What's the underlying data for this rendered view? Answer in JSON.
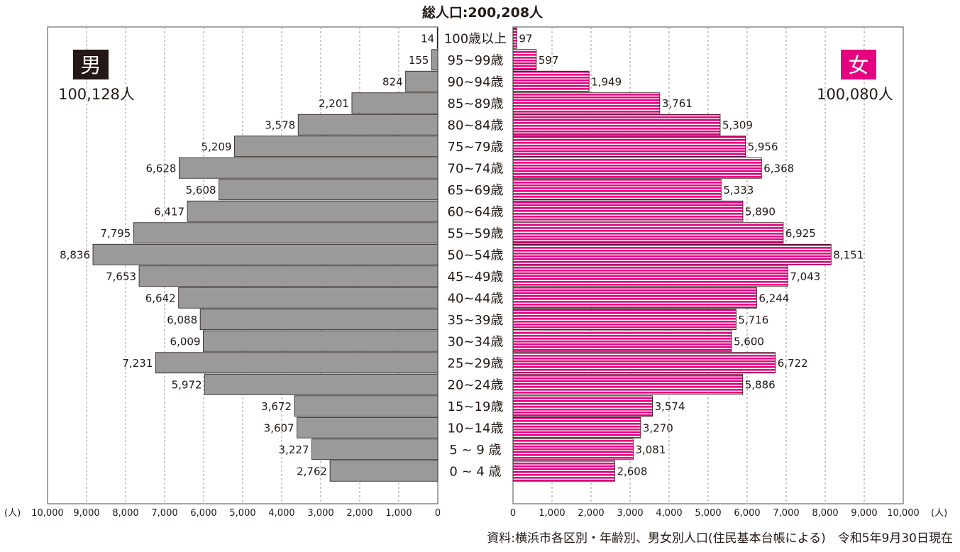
{
  "chart_data": {
    "type": "bar",
    "title": "総人口:200,208人",
    "source": "資料:横浜市各区別・年齢別、男女別人口(住民基本台帳による)　令和5年9月30日現在",
    "unit_left": "(人)",
    "unit_right": "(人)",
    "categories": [
      "100歳以上",
      "95~99歳",
      "90~94歳",
      "85~89歳",
      "80~84歳",
      "75~79歳",
      "70~74歳",
      "65~69歳",
      "60~64歳",
      "55~59歳",
      "50~54歳",
      "45~49歳",
      "40~44歳",
      "35~39歳",
      "30~34歳",
      "25~29歳",
      "20~24歳",
      "15~19歳",
      "10~14歳",
      "5 ~ 9 歳",
      "0 ~ 4 歳"
    ],
    "series": [
      {
        "name": "男",
        "total": "100,128人",
        "color": "#9a9a9a",
        "values": [
          14,
          155,
          824,
          2201,
          3578,
          5209,
          6628,
          5608,
          6417,
          7795,
          8836,
          7653,
          6642,
          6088,
          6009,
          7231,
          5972,
          3672,
          3607,
          3227,
          2762
        ],
        "labels": [
          "14",
          "155",
          "824",
          "2,201",
          "3,578",
          "5,209",
          "6,628",
          "5,608",
          "6,417",
          "7,795",
          "8,836",
          "7,653",
          "6,642",
          "6,088",
          "6,009",
          "7,231",
          "5,972",
          "3,672",
          "3,607",
          "3,227",
          "2,762"
        ]
      },
      {
        "name": "女",
        "total": "100,080人",
        "color": "#e4007f",
        "values": [
          97,
          597,
          1949,
          3761,
          5309,
          5956,
          6368,
          5333,
          5890,
          6925,
          8151,
          7043,
          6244,
          5716,
          5600,
          6722,
          5886,
          3574,
          3270,
          3081,
          2608
        ],
        "labels": [
          "97",
          "597",
          "1,949",
          "3,761",
          "5,309",
          "5,956",
          "6,368",
          "5,333",
          "5,890",
          "6,925",
          "8,151",
          "7,043",
          "6,244",
          "5,716",
          "5,600",
          "6,722",
          "5,886",
          "3,574",
          "3,270",
          "3,081",
          "2,608"
        ]
      }
    ],
    "xlim": [
      0,
      10000
    ],
    "ticks_left": [
      "10,000",
      "9,000",
      "8,000",
      "7,000",
      "6,000",
      "5,000",
      "4,000",
      "3,000",
      "2,000",
      "1,000",
      "0"
    ],
    "ticks_right": [
      "0",
      "1,000",
      "2,000",
      "3,000",
      "4,000",
      "5,000",
      "6,000",
      "7,000",
      "8,000",
      "9,000",
      "10,000"
    ],
    "grid": true,
    "grid_style": "dashed",
    "colors": {
      "male_badge": "#231815",
      "female_badge": "#e4007f",
      "male_bar": "#9a9a9a",
      "female_bar": "#e4007f",
      "female_stripe": "#ffffff"
    }
  }
}
